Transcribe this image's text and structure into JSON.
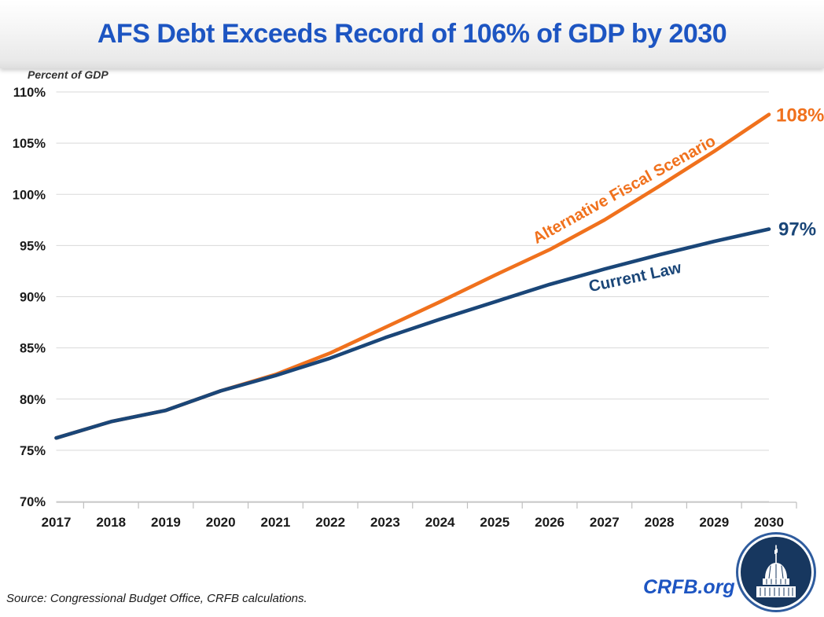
{
  "header": {
    "title": "AFS Debt Exceeds Record of 106% of GDP by 2030"
  },
  "y_axis_title": "Percent of GDP",
  "colors": {
    "title": "#1D55C2",
    "afs_orange": "#F0711D",
    "current_law_navy": "#1A4678",
    "gridline": "#D9D9D9",
    "axis": "#BFBFBF",
    "tick_text": "#1a1a1a",
    "logo_navy": "#17375F",
    "logo_ring": "#2F5C9E"
  },
  "chart_data": {
    "type": "line",
    "title": "AFS Debt Exceeds Record of 106% of GDP by 2030",
    "ylabel": "Percent of GDP",
    "xlabel": "",
    "grid": true,
    "legend_position": "inline-rotated-labels",
    "x": [
      "2017",
      "2018",
      "2019",
      "2020",
      "2021",
      "2022",
      "2023",
      "2024",
      "2025",
      "2026",
      "2027",
      "2028",
      "2029",
      "2030"
    ],
    "ylim": [
      70,
      110
    ],
    "yticks": [
      110,
      105,
      100,
      95,
      90,
      85,
      80,
      75,
      70
    ],
    "ytick_labels": [
      "110%",
      "105%",
      "100%",
      "95%",
      "90%",
      "85%",
      "80%",
      "75%",
      "70%"
    ],
    "series": [
      {
        "name": "Alternative Fiscal Scenario",
        "color": "#F0711D",
        "end_label": "108%",
        "values": [
          76.2,
          77.8,
          78.9,
          80.8,
          82.4,
          84.5,
          87.0,
          89.5,
          92.1,
          94.6,
          97.5,
          100.8,
          104.2,
          107.8
        ]
      },
      {
        "name": "Current Law",
        "color": "#1A4678",
        "end_label": "97%",
        "values": [
          76.2,
          77.8,
          78.9,
          80.8,
          82.3,
          84.0,
          86.0,
          87.8,
          89.5,
          91.2,
          92.7,
          94.1,
          95.4,
          96.6
        ]
      }
    ]
  },
  "footer": {
    "source": "Source: Congressional Budget Office, CRFB calculations.",
    "site": "CRFB.org",
    "logo_icon": "capitol-dome-icon"
  }
}
